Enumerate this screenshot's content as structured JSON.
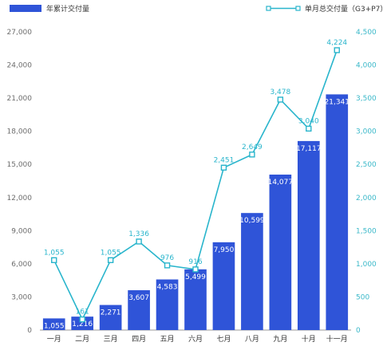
{
  "chart_data": {
    "type": "bar",
    "categories": [
      "一月",
      "二月",
      "三月",
      "四月",
      "五月",
      "六月",
      "七月",
      "八月",
      "九月",
      "十月",
      "十一月"
    ],
    "series": [
      {
        "name": "年累计交付量",
        "type": "bar",
        "axis": "left",
        "color": "#2f54d8",
        "values": [
          1055,
          1216,
          2271,
          3607,
          4583,
          5499,
          7950,
          10599,
          14077,
          17117,
          21341
        ],
        "labels": [
          "1,055",
          "1,216",
          "2,271",
          "3,607",
          "4,583",
          "5,499",
          "7,950",
          "10,599",
          "14,077",
          "17,117",
          "21,341"
        ]
      },
      {
        "name": "单月总交付量（G3+P7）",
        "type": "line",
        "axis": "right",
        "color": "#29b5cc",
        "values": [
          1055,
          161,
          1055,
          1336,
          976,
          916,
          2451,
          2649,
          3478,
          3040,
          4224
        ],
        "labels": [
          "1,055",
          "161",
          "1,055",
          "1,336",
          "976",
          "916",
          "2,451",
          "2,649",
          "3,478",
          "3,040",
          "4,224"
        ]
      }
    ],
    "y_left": {
      "ylim": [
        0,
        27000
      ],
      "ticks": [
        0,
        3000,
        6000,
        9000,
        12000,
        15000,
        18000,
        21000,
        24000,
        27000
      ],
      "tick_labels": [
        "0",
        "3,000",
        "6,000",
        "9,000",
        "12,000",
        "15,000",
        "18,000",
        "21,000",
        "24,000",
        "27,000"
      ]
    },
    "y_right": {
      "ylim": [
        0,
        4500
      ],
      "ticks": [
        0,
        500,
        1000,
        1500,
        2000,
        2500,
        3000,
        3500,
        4000,
        4500
      ],
      "tick_labels": [
        "0",
        "500",
        "1,000",
        "1,500",
        "2,000",
        "2,500",
        "3,000",
        "3,500",
        "4,000",
        "4,500"
      ]
    },
    "legend_placement": "top",
    "grid": false
  }
}
